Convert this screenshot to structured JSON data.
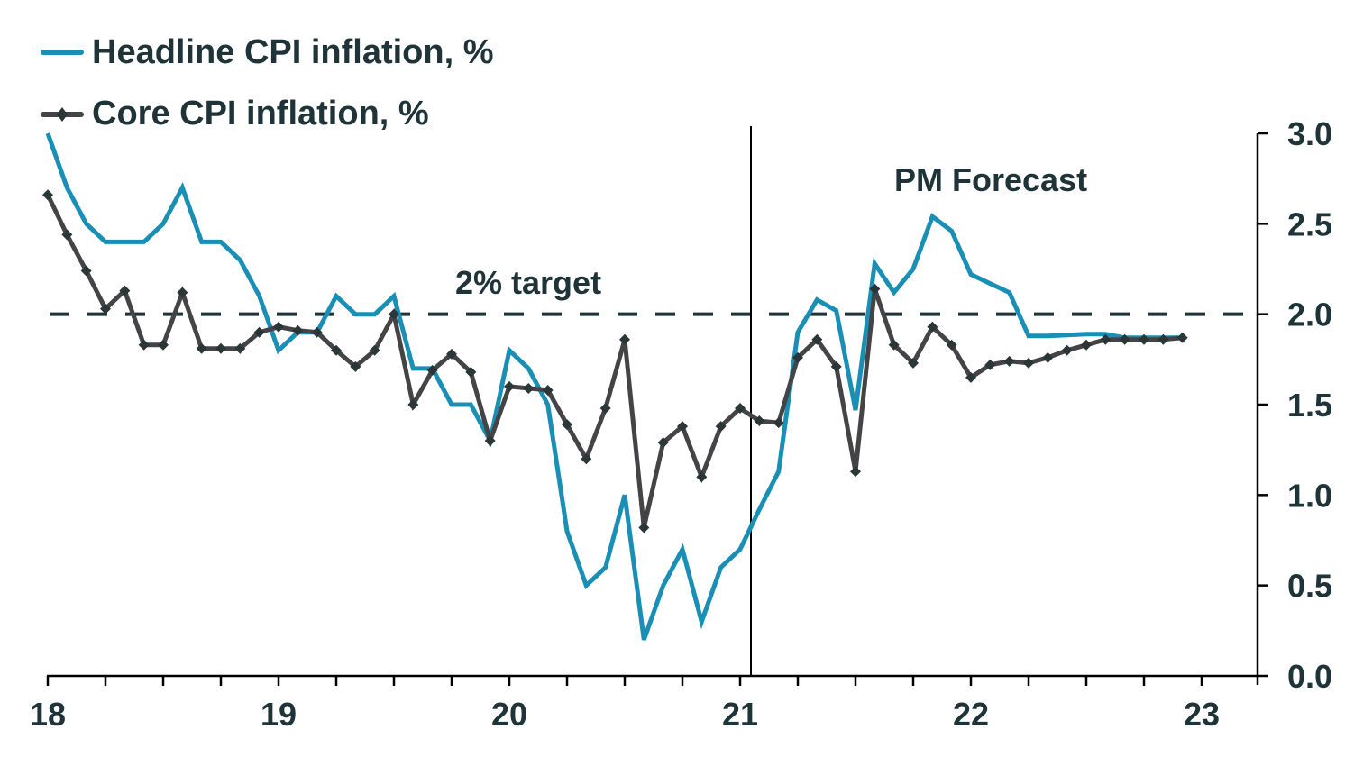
{
  "chart_data": {
    "type": "line",
    "title": "",
    "xlabel": "",
    "ylabel": "",
    "ylim": [
      0,
      3.0
    ],
    "yticks": [
      "0.0",
      "0.5",
      "1.0",
      "1.5",
      "2.0",
      "2.5",
      "3.0"
    ],
    "ytick_values": [
      0,
      0.5,
      1.0,
      1.5,
      2.0,
      2.5,
      3.0
    ],
    "y_axis_side": "right",
    "xticks": [
      "18",
      "19",
      "20",
      "21",
      "22",
      "23"
    ],
    "x_start": "2018-01",
    "x_frequency": "monthly",
    "x_minor_ticks": "quarterly",
    "grid": false,
    "legend_position": "top-left",
    "series": [
      {
        "name": "Headline CPI inflation, %",
        "color": "#1a8fb5",
        "marker": "none",
        "values": [
          3.0,
          2.7,
          2.5,
          2.4,
          2.4,
          2.4,
          2.5,
          2.7,
          2.4,
          2.4,
          2.3,
          2.1,
          1.8,
          1.9,
          1.9,
          2.1,
          2.0,
          2.0,
          2.1,
          1.7,
          1.7,
          1.5,
          1.5,
          1.3,
          1.8,
          1.7,
          1.5,
          0.8,
          0.5,
          0.6,
          1.0,
          0.2,
          0.5,
          0.7,
          0.3,
          0.6,
          0.7,
          0.92,
          1.13,
          1.9,
          2.08,
          2.02,
          1.47,
          2.28,
          2.12,
          2.25,
          2.54,
          2.46,
          2.22,
          2.17,
          2.12,
          1.88,
          1.88,
          1.885,
          1.89,
          1.89,
          1.87,
          1.87,
          1.87,
          1.87
        ]
      },
      {
        "name": "Core CPI inflation, %",
        "color": "#444446",
        "marker": "diamond",
        "values": [
          2.66,
          2.44,
          2.24,
          2.03,
          2.13,
          1.83,
          1.83,
          2.12,
          1.81,
          1.81,
          1.81,
          1.9,
          1.93,
          1.91,
          1.9,
          1.8,
          1.71,
          1.8,
          2.0,
          1.5,
          1.69,
          1.78,
          1.68,
          1.3,
          1.6,
          1.59,
          1.58,
          1.39,
          1.2,
          1.48,
          1.86,
          0.82,
          1.29,
          1.38,
          1.1,
          1.38,
          1.48,
          1.41,
          1.4,
          1.76,
          1.86,
          1.71,
          1.13,
          2.14,
          1.83,
          1.73,
          1.93,
          1.83,
          1.65,
          1.72,
          1.74,
          1.73,
          1.76,
          1.8,
          1.83,
          1.86,
          1.86,
          1.86,
          1.86,
          1.87
        ]
      }
    ],
    "reference_lines": [
      {
        "type": "horizontal",
        "value": 2.0,
        "style": "dashed",
        "label": "2% target",
        "color": "#1f3438"
      },
      {
        "type": "vertical",
        "at": "2021-01",
        "style": "solid",
        "label": "PM Forecast",
        "color": "#000000"
      }
    ],
    "annotations": [
      "2% target",
      "PM Forecast"
    ]
  }
}
